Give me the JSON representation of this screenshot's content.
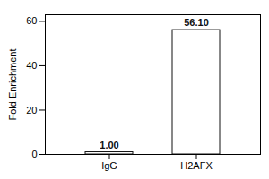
{
  "chart_data": {
    "type": "bar",
    "categories": [
      "IgG",
      "H2AFX"
    ],
    "values": [
      1.0,
      56.1
    ],
    "value_labels": [
      "1.00",
      "56.10"
    ],
    "data_labels": true,
    "color": "#ffffff",
    "ylabel": "Fold Enrichment",
    "ylim": [
      0,
      63
    ],
    "yticks": [
      0,
      20,
      40,
      60
    ]
  }
}
